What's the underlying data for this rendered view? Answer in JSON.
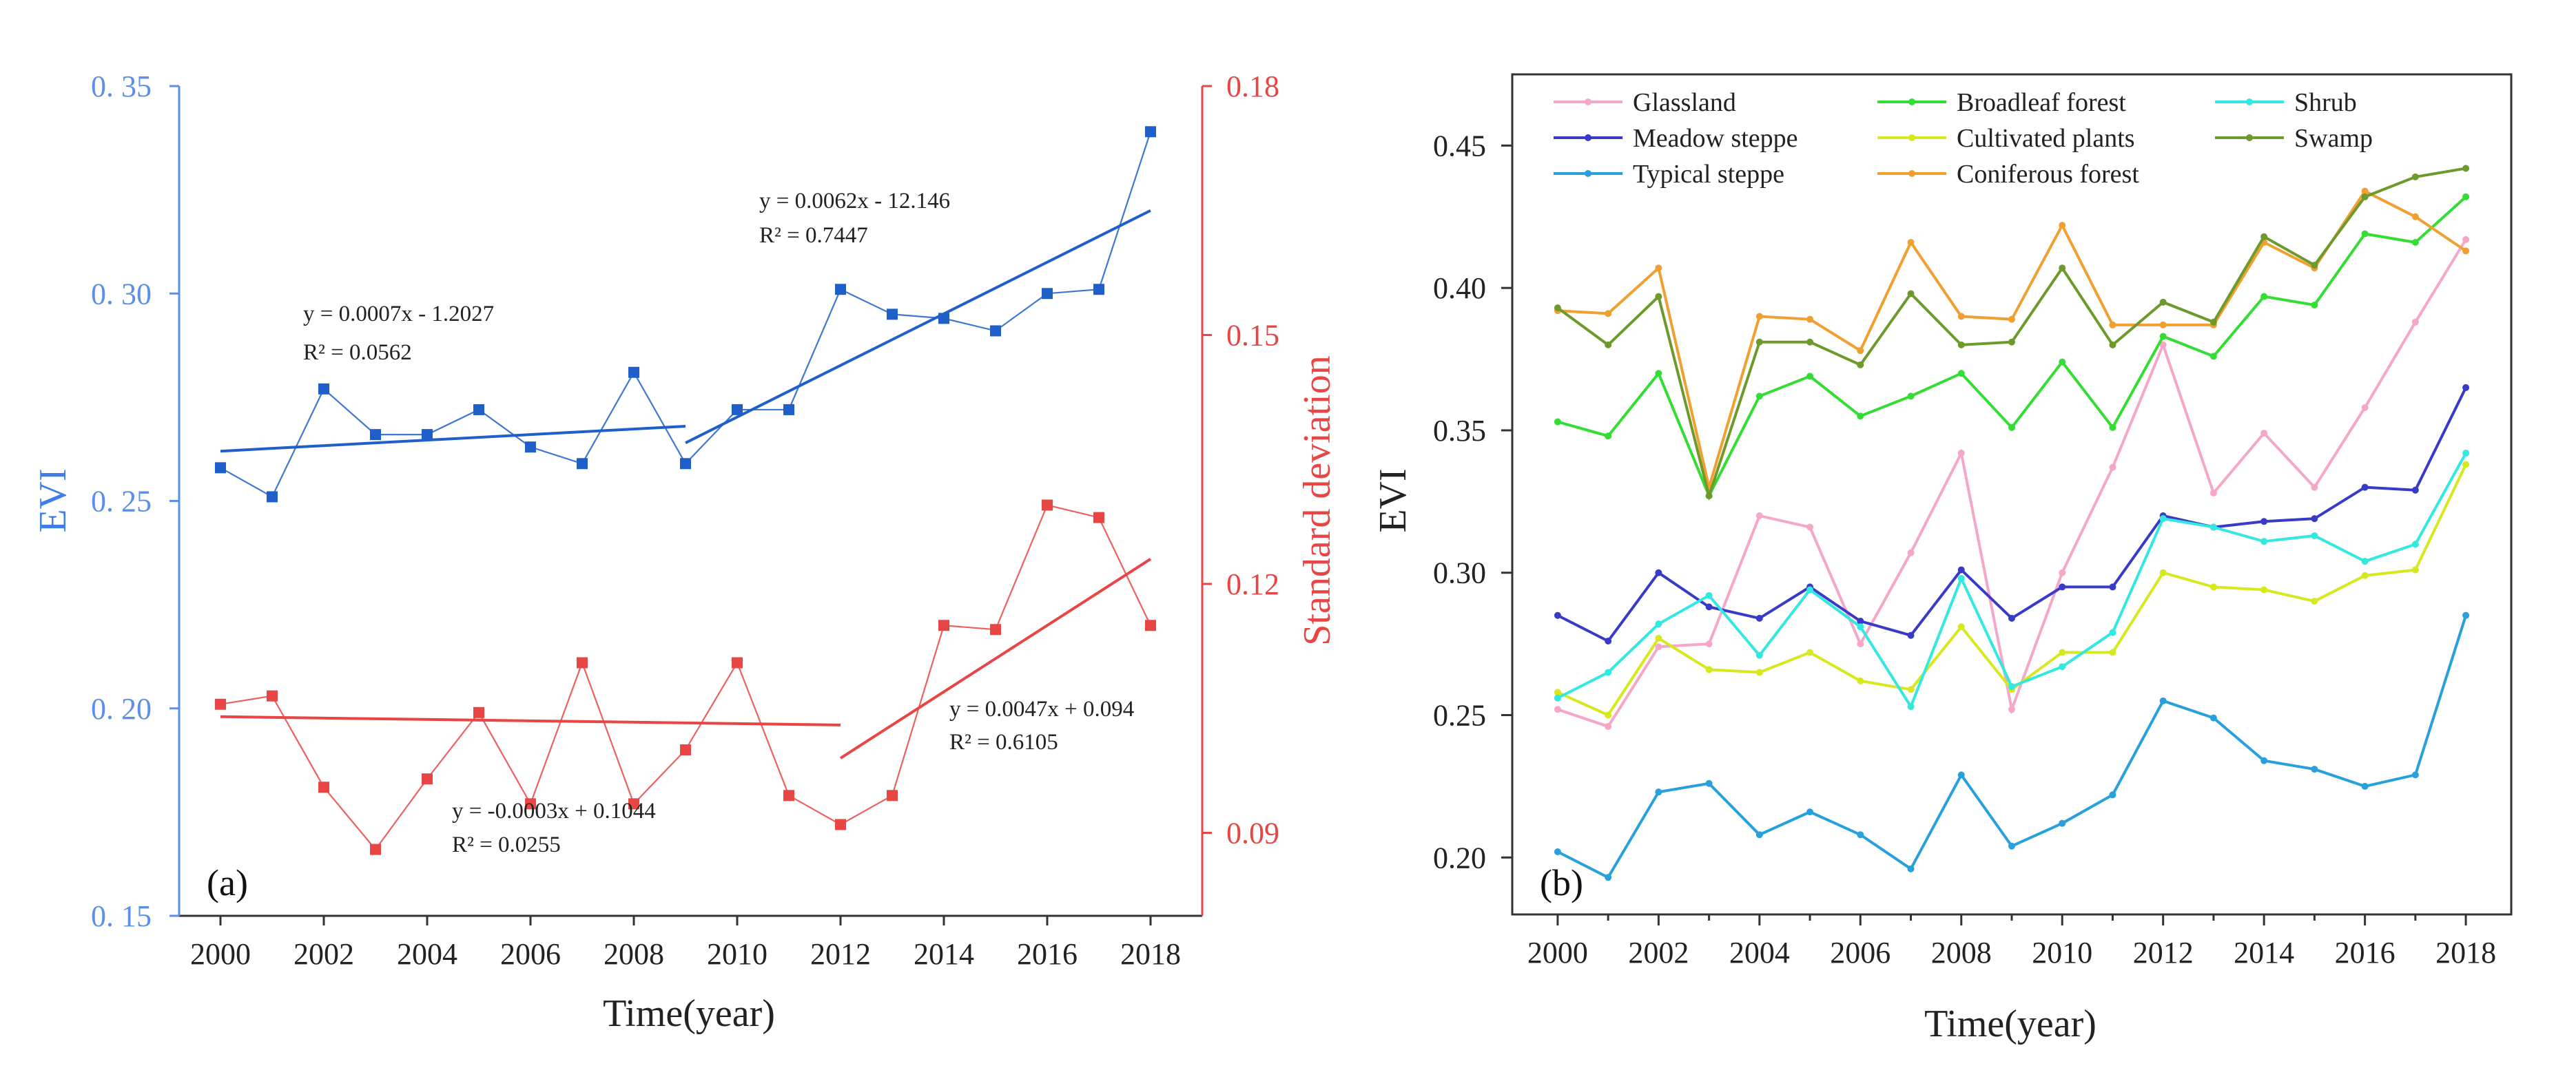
{
  "figure": {
    "panels": [
      "(a)",
      "(b)"
    ]
  },
  "chart_data": [
    {
      "panel_label": "(a)",
      "type": "line",
      "xlabel": "Time(year)",
      "ylabel": "EVI",
      "y2label": "Standard deviation",
      "xlim": [
        1999.2,
        2019
      ],
      "ylim": [
        0.15,
        0.35
      ],
      "y2lim": [
        0.08,
        0.18
      ],
      "xticks": [
        2000,
        2002,
        2004,
        2006,
        2008,
        2010,
        2012,
        2014,
        2016,
        2018
      ],
      "yticks": [
        "0. 15",
        "0. 20",
        "0. 25",
        "0. 30",
        "0. 35"
      ],
      "y2ticks": [
        "0.09",
        "0.12",
        "0.15",
        "0.18"
      ],
      "colors": {
        "evi": "#1f5fc9",
        "evi_axis": "#5b8fe8",
        "sd": "#e84545",
        "sd_axis": "#e84545"
      },
      "x": [
        2000,
        2001,
        2002,
        2003,
        2004,
        2005,
        2006,
        2007,
        2008,
        2009,
        2010,
        2011,
        2012,
        2013,
        2014,
        2015,
        2016,
        2017,
        2018
      ],
      "series": [
        {
          "name": "EVI",
          "axis": "left",
          "values": [
            0.258,
            0.251,
            0.277,
            0.266,
            0.266,
            0.272,
            0.263,
            0.259,
            0.281,
            0.259,
            0.272,
            0.272,
            0.301,
            0.295,
            0.294,
            0.291,
            0.3,
            0.301,
            0.339
          ]
        },
        {
          "name": "Standard deviation",
          "axis": "right",
          "values": [
            0.1055,
            0.1065,
            0.0955,
            0.088,
            0.0965,
            0.1045,
            0.0935,
            0.1105,
            0.0935,
            0.1,
            0.1105,
            0.0945,
            0.091,
            0.0945,
            0.115,
            0.1145,
            0.1295,
            0.128,
            0.115
          ]
        }
      ],
      "trendlines": [
        {
          "axis": "left",
          "x": [
            2000,
            2009
          ],
          "y": [
            0.262,
            0.268
          ],
          "equation": "y = 0.0007x - 1.2027",
          "r2": "R² = 0.0562"
        },
        {
          "axis": "left",
          "x": [
            2009,
            2018
          ],
          "y": [
            0.264,
            0.32
          ],
          "equation": "y = 0.0062x - 12.146",
          "r2": "R² = 0.7447"
        },
        {
          "axis": "right",
          "x": [
            2000,
            2012
          ],
          "y": [
            0.104,
            0.103
          ],
          "equation": "y = -0.0003x + 0.1044",
          "r2": "R² = 0.0255"
        },
        {
          "axis": "right",
          "x": [
            2012,
            2018
          ],
          "y": [
            0.099,
            0.123
          ],
          "equation": "y = 0.0047x + 0.094",
          "r2": "R² = 0.6105"
        }
      ]
    },
    {
      "panel_label": "(b)",
      "type": "line",
      "xlabel": "Time(year)",
      "ylabel": "EVI",
      "xlim": [
        1999.1,
        2018.9
      ],
      "ylim": [
        0.18,
        0.475
      ],
      "xticks": [
        2000,
        2002,
        2004,
        2006,
        2008,
        2010,
        2012,
        2014,
        2016,
        2018
      ],
      "yticks": [
        "0.20",
        "0.25",
        "0.30",
        "0.35",
        "0.40",
        "0.45"
      ],
      "legend_position": "top",
      "x": [
        2000,
        2001,
        2002,
        2003,
        2004,
        2005,
        2006,
        2007,
        2008,
        2009,
        2010,
        2011,
        2012,
        2013,
        2014,
        2015,
        2016,
        2017,
        2018
      ],
      "series": [
        {
          "name": "Glassland",
          "color": "#f4a7c8",
          "values": [
            0.252,
            0.246,
            0.274,
            0.275,
            0.32,
            0.316,
            0.275,
            0.307,
            0.342,
            0.252,
            0.3,
            0.337,
            0.38,
            0.328,
            0.349,
            0.33,
            0.358,
            0.388,
            0.417
          ]
        },
        {
          "name": "Meadow steppe",
          "color": "#3a3ac8",
          "values": [
            0.285,
            0.276,
            0.3,
            0.288,
            0.284,
            0.295,
            0.283,
            0.278,
            0.301,
            0.284,
            0.295,
            0.295,
            0.32,
            0.316,
            0.318,
            0.319,
            0.33,
            0.329,
            0.365
          ]
        },
        {
          "name": "Typical steppe",
          "color": "#28a0dc",
          "values": [
            0.202,
            0.193,
            0.223,
            0.226,
            0.208,
            0.216,
            0.208,
            0.196,
            0.229,
            0.204,
            0.212,
            0.222,
            0.255,
            0.249,
            0.234,
            0.231,
            0.225,
            0.229,
            0.285
          ]
        },
        {
          "name": "Broadleaf forest",
          "color": "#33dd33",
          "values": [
            0.353,
            0.348,
            0.37,
            0.327,
            0.362,
            0.369,
            0.355,
            0.362,
            0.37,
            0.351,
            0.374,
            0.351,
            0.383,
            0.376,
            0.397,
            0.394,
            0.419,
            0.416,
            0.432
          ]
        },
        {
          "name": "Cultivated plants",
          "color": "#d8e81e",
          "values": [
            0.258,
            0.25,
            0.277,
            0.266,
            0.265,
            0.272,
            0.262,
            0.259,
            0.281,
            0.259,
            0.272,
            0.272,
            0.3,
            0.295,
            0.294,
            0.29,
            0.299,
            0.301,
            0.338
          ]
        },
        {
          "name": "Coniferous forest",
          "color": "#f0a030",
          "values": [
            0.392,
            0.391,
            0.407,
            0.33,
            0.39,
            0.389,
            0.378,
            0.416,
            0.39,
            0.389,
            0.422,
            0.387,
            0.387,
            0.387,
            0.416,
            0.407,
            0.434,
            0.425,
            0.413
          ]
        },
        {
          "name": "Shrub",
          "color": "#33e8e0",
          "values": [
            0.256,
            0.265,
            0.282,
            0.292,
            0.271,
            0.294,
            0.281,
            0.253,
            0.298,
            0.26,
            0.267,
            0.279,
            0.319,
            0.316,
            0.311,
            0.313,
            0.304,
            0.31,
            0.342
          ]
        },
        {
          "name": "Swamp",
          "color": "#6e9a2c",
          "values": [
            0.393,
            0.38,
            0.397,
            0.327,
            0.381,
            0.381,
            0.373,
            0.398,
            0.38,
            0.381,
            0.407,
            0.38,
            0.395,
            0.388,
            0.418,
            0.408,
            0.432,
            0.439,
            0.442
          ]
        }
      ]
    }
  ]
}
